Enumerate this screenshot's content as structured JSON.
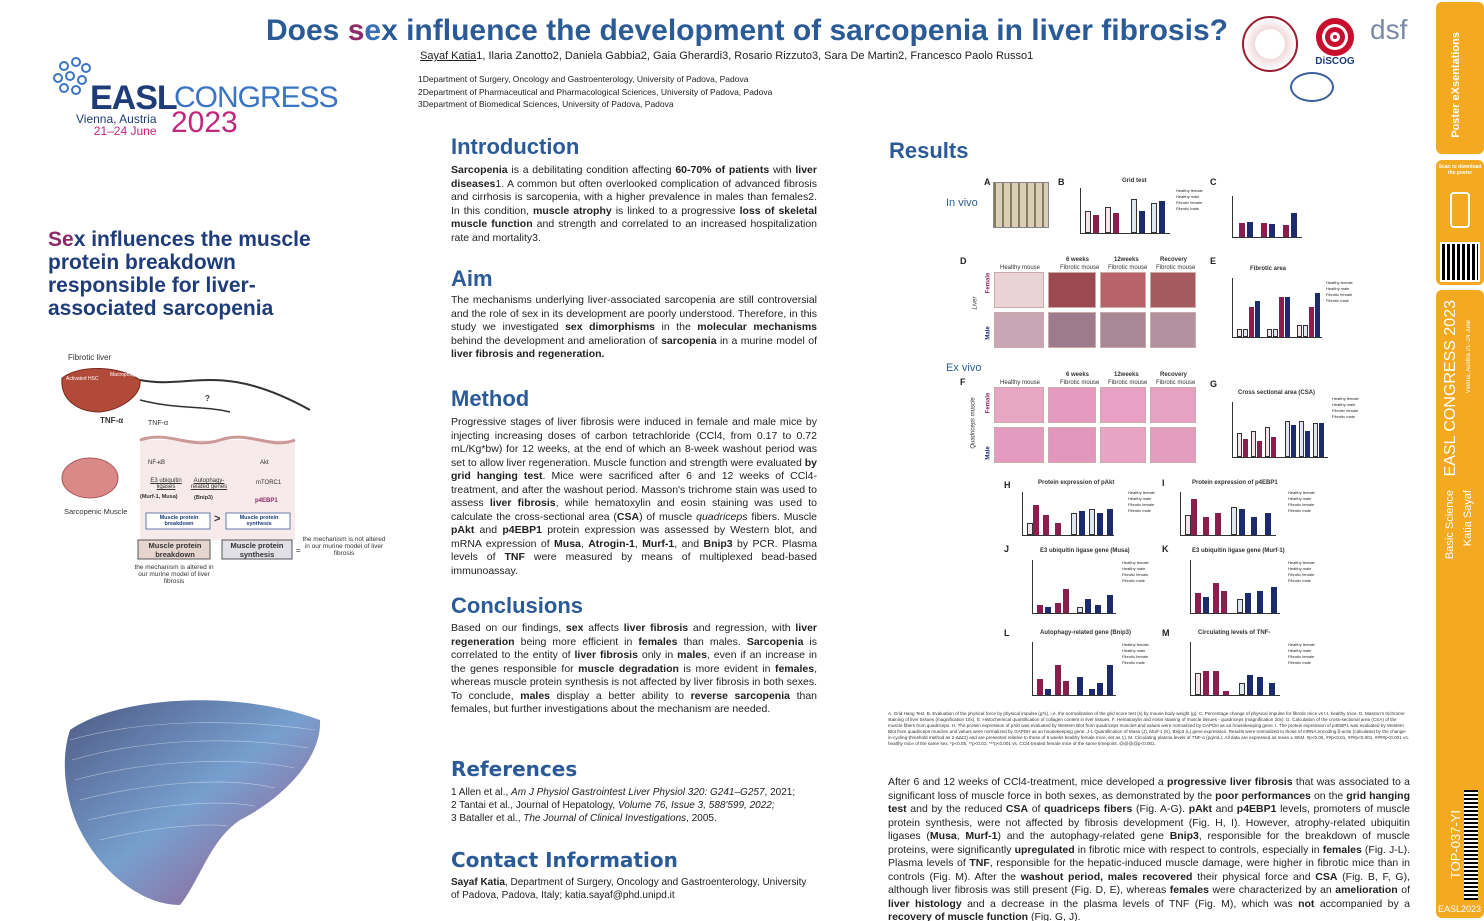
{
  "header": {
    "title_pre": "Does ",
    "title_s": "s",
    "title_e": "e",
    "title_x": "x",
    "title_post": " influence the development of sarcopenia in liver fibrosis?",
    "author_first": "Sayaf Katia",
    "authors_rest": "1, Ilaria Zanotto2, Daniela Gabbia2, Gaia Gherardi3, Rosario Rizzuto3, Sara De Martin2, Francesco Paolo Russo1",
    "affiliations": [
      "1Department of Surgery, Oncology and Gastroenterology, University of Padova, Padova",
      "2Department of Pharmaceutical and Pharmacological Sciences, University of Padova, Padova",
      "3Department of Biomedical Sciences, University of Padova, Padova"
    ],
    "logo_right_1": "DiSCOG",
    "logo_right_2": "dsf"
  },
  "congress": {
    "easl": "EASL",
    "congress": "CONGRESS",
    "location": "Vienna, Austria",
    "dates": "21–24 June",
    "year": "2023"
  },
  "tagline": {
    "s": "S",
    "e": "e",
    "rest": "x influences the muscle protein breakdown responsible for liver-associated sarcopenia"
  },
  "diagram": {
    "fibrotic_liver": "Fibrotic liver",
    "activated_hsc": "Activated HSC",
    "macrophages": "Macrophages",
    "tnf": "TNF-α",
    "tnf_receptor": "TNF-α",
    "question": "?",
    "nfkb": "NF-κB",
    "akt": "Akt",
    "e3_ligases": "E3 ubiquitin ligases",
    "e3_examples": "(Murf-1, Musa)",
    "autophagy": "Autophagy-related genes",
    "bnip3": "(Bnip3)",
    "mtorc1": "mTORC1",
    "p4ebp1": "p4EBP1",
    "sarcopenic_muscle": "Sarcopenic Muscle",
    "breakdown_small": "Muscle protein breakdown",
    "synthesis_small": "Muscle protein synthesis",
    "gt": ">",
    "breakdown_big": "Muscle protein breakdown",
    "synthesis_big": "Muscle protein synthesis",
    "eq": "=",
    "note_synthesis": "the mechanism is not altered in our murine model of liver fibrosis",
    "note_breakdown": "the mechanism is altered in our murine model of liver fibrosis"
  },
  "introduction": {
    "title": "Introduction",
    "text_1": "Sarcopenia",
    "text_2": " is a debilitating condition affecting ",
    "text_3": "60-70% of patients",
    "text_4": " with ",
    "text_5": "liver diseases",
    "text_6": "1. A common but often overlooked complication of advanced fibrosis and cirrhosis is sarcopenia, with a higher prevalence in males than females2. In this condition, ",
    "text_7": "muscle atrophy",
    "text_8": " is linked to a progressive ",
    "text_9": "loss of skeletal muscle function",
    "text_10": " and strength and correlated to an increased hospitalization rate and mortality3."
  },
  "aim": {
    "title": "Aim",
    "text_1": "The mechanisms underlying liver-associated sarcopenia are still controversial and the role of sex in its development are poorly understood. Therefore, in this study we investigated ",
    "text_2": "sex dimorphisms",
    "text_3": " in the ",
    "text_4": "molecular mechanisms",
    "text_5": " behind the development and amelioration of ",
    "text_6": "sarcopenia",
    "text_7": " in a murine model of ",
    "text_8": "liver fibrosis and regeneration."
  },
  "method": {
    "title": "Method",
    "text_1": "Progressive stages of liver fibrosis were induced in female and male mice by injecting increasing doses of carbon tetrachloride (CCl4, from 0.17 to 0.72 mL/Kg*bw) for 12 weeks, at the end of which an 8-week washout period was set to allow liver regeneration. Muscle function and strength were evaluated ",
    "text_2": "by grid hanging test",
    "text_3": ". Mice were sacrificed after 6 and 12 weeks of CCl4-treatment, and after the washout period. Masson's trichrome stain was used to assess ",
    "text_4": "liver fibrosis",
    "text_5": ", while hematoxylin and eosin staining was used to calculate the cross-sectional area (",
    "text_6": "CSA",
    "text_7": ") of muscle ",
    "text_8": "quadriceps",
    "text_9": " fibers. Muscle ",
    "text_10": "pAkt",
    "text_11": " and ",
    "text_12": "p4EBP1",
    "text_13": " protein expression was assessed by Western blot, and mRNA expression of ",
    "text_14": "Musa",
    "text_15": ", ",
    "text_16": "Atrogin-1",
    "text_17": ", ",
    "text_18": "Murf-1",
    "text_19": ", and ",
    "text_20": "Bnip3",
    "text_21": " by PCR. Plasma levels of ",
    "text_22": "TNF",
    "text_23": " were measured by means of multiplexed bead-based immunoassay."
  },
  "conclusions": {
    "title": "Conclusions",
    "text_1": "Based on our findings, ",
    "text_2": "sex",
    "text_3": " affects ",
    "text_4": "liver fibrosis",
    "text_5": " and regression, with ",
    "text_6": "liver regeneration",
    "text_7": " being more efficient in ",
    "text_8": "females",
    "text_9": " than males. ",
    "text_10": "Sarcopenia",
    "text_11": " is correlated to the entity of ",
    "text_12": "liver fibrosis",
    "text_13": " only in ",
    "text_14": "males",
    "text_15": ", even if an increase in the genes responsible for ",
    "text_16": "muscle degradation",
    "text_17": " is more evident in ",
    "text_18": "females",
    "text_19": ", whereas muscle protein synthesis is not affected by liver fibrosis in both sexes. To conclude, ",
    "text_20": "males",
    "text_21": " display a better ability to ",
    "text_22": "reverse sarcopenia",
    "text_23": " than females, but further investigations about the mechanism are needed."
  },
  "references": {
    "title": "References",
    "r1_a": "1 Allen et al., ",
    "r1_b": "Am J Physiol Gastrointest Liver Physiol 320: G241–G257",
    "r1_c": ", 2021;",
    "r2_a": "2 Tantai et al., Journal of Hepatology, ",
    "r2_b": "Volume 76, Issue 3, 588'599, 2022;",
    "r3_a": "3 Bataller et al., ",
    "r3_b": "The Journal of Clinical Investigations",
    "r3_c": ", 2005."
  },
  "contact": {
    "title": "Contact Information",
    "name": "Sayaf Katia",
    "text": ", Department of Surgery, Oncology and Gastroenterology, University of Padova, Padova, Italy; katia.sayaf@phd.unipd.it"
  },
  "results": {
    "title": "Results",
    "in_vivo": "In vivo",
    "ex_vivo": "Ex vivo",
    "panel_letters": [
      "A",
      "B",
      "C",
      "D",
      "E",
      "F",
      "G",
      "H",
      "I",
      "J",
      "K",
      "L",
      "M"
    ],
    "grid_test": "Grid test",
    "fibrotic_area": "Fibrotic area",
    "csa_title": "Cross sectional area (CSA)",
    "pakt_title": "Protein expression of pAkt",
    "p4ebp1_title": "Protein expression of p4EBP1",
    "musa_title": "E3 ubiquitin ligase gene (Musa)",
    "murf_title": "E3 ubiquitin ligase gene (Murf-1)",
    "bnip3_title": "Autophagy-related gene (Bnip3)",
    "tnf_title": "Circulating levels of TNF-",
    "weeks6": "6 weeks",
    "weeks12": "12weeks",
    "recovery": "Recovery",
    "healthy_mouse": "Healthy mouse",
    "fibrotic_mouse": "Fibrotic mouse",
    "liver": "Liver",
    "quadriceps": "Quadriceps muscle",
    "female": "Female",
    "male": "Male",
    "legend": [
      "Healthy female",
      "Healthy male",
      "Fibrotic female",
      "Fibrotic male"
    ],
    "caption": "A. Grid Hang Test. B. Evaluation of the physical force by physical impulse (g*s), i.e. the normalization of the grid score test (s) by mouse body weight (g). C. Percentage change of physical impulse for fibrotic mice vs t.t. healthy mice. D. Masson's trichrome staining of liver tissues (magnification 10x). E. Histochemical quantification of collagen content in liver tissues. F. Hematoxylin and eosin staining of muscle tissues - quadriceps (magnification 20x). G. Calculation of the cross-sectional area (CSA) of the muscle fibers from quadriceps. H. The protein expression of pAkt was evaluated by Western Blot from quadriceps muscles and values were normalized by GAPDH as an housekeeping gene. I. The protein expression of p4EBP1 was evaluated by Western Blot from quadriceps muscles and values were normalized by GAPDH as an housekeeping gene. J-L Quantification of Musa (J), Murf-1 (K), Bnip3 (L) gene expression. Results were normalized to those of mRNA encoding β-actin (calculated by the change-in-cycling-threshold method as 2-ΔΔCt) and are presented relative to those of 6 weeks healthy female mice, set as 1). M. Circulating plasma levels of TNF-α (pg/mL). All data are expressed as mean ± SEM. #p<0.05, ##p<0.01, ###p<0.001, ####p<0.001 vs. healthy mice of the same sex, *p<0.05, **p<0.01, ***p<0.001 vs. CCl4-treated female mice of the same timepoint, @@@@p<0.001.",
    "text_1": "After 6 and 12 weeks of CCl4-treatment, mice developed a ",
    "text_2": "progressive liver fibrosis",
    "text_3": " that was associated to a significant loss of muscle force in both sexes, as demonstrated by the ",
    "text_4": "poor performances",
    "text_5": " on the ",
    "text_6": "grid hanging test",
    "text_7": " and by the reduced ",
    "text_8": "CSA",
    "text_9": " of ",
    "text_10": "quadriceps fibers",
    "text_11": " (Fig. A-G). ",
    "text_12": "pAkt",
    "text_13": " and ",
    "text_14": "p4EBP1",
    "text_15": " levels, promoters of muscle protein synthesis, were not affected by fibrosis development (Fig. H, I). However, atrophy-related ubiquitin ligases (",
    "text_16": "Musa",
    "text_17": ", ",
    "text_18": "Murf-1",
    "text_19": ") and the autophagy-related gene ",
    "text_20": "Bnip3",
    "text_21": ", responsible for the breakdown of muscle proteins, were significantly ",
    "text_22": "upregulated",
    "text_23": " in fibrotic mice with respect to controls, especially in ",
    "text_24": "females",
    "text_25": " (Fig. J-L). Plasma levels of ",
    "text_26": "TNF",
    "text_27": ", responsible for the hepatic-induced muscle damage, were higher in fibrotic mice than in controls (Fig. M). After the ",
    "text_28": "washout period, males recovered",
    "text_29": " their physical force and ",
    "text_30": "CSA",
    "text_31": " (Fig. B, F, G), although liver fibrosis was still present (Fig. D, E), whereas ",
    "text_32": "females",
    "text_33": " were characterized by an ",
    "text_34": "amelioration",
    "text_35": " of ",
    "text_36": "liver histology",
    "text_37": " and a decrease in the plasma levels of TNF (Fig. M), which was ",
    "text_38": "not",
    "text_39": " accompanied by a ",
    "text_40": "recovery of muscle function",
    "text_41": " (Fig. G, J)."
  },
  "sidebar": {
    "brand": "Poster eXsentations",
    "scan": "Scan to download the poster",
    "congress": "EASL CONGRESS 2023",
    "location": "Vienna, Austria 21–24 June",
    "category": "Basic Science",
    "author": "Katia Sayaf",
    "code": "TOP-037-YI",
    "footer": "EASL2023"
  },
  "colors": {
    "title_blue": "#2b5b97",
    "magenta": "#8b2b68",
    "accent_orange": "#f3a920",
    "navy": "#1f3c7a"
  }
}
